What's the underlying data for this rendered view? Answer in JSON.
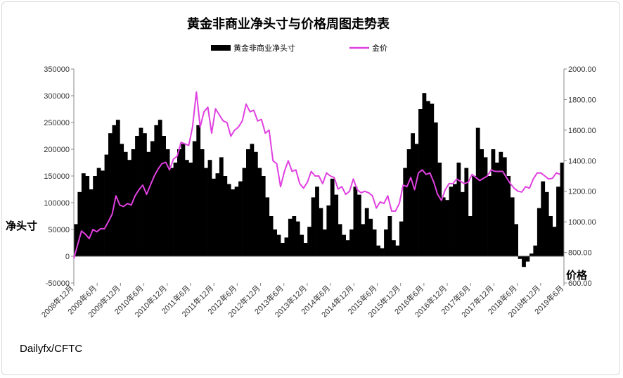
{
  "chart_data": {
    "type": "bar",
    "title": "黄金非商业净头寸与价格周图走势表",
    "source": "Dailyfx/CFTC",
    "left_axis_label": "净头寸",
    "right_axis_label": "价格",
    "left_ylim": [
      -50000,
      350000
    ],
    "right_ylim": [
      600,
      2000
    ],
    "left_ticks": [
      "350000",
      "300000",
      "250000",
      "200000",
      "150000",
      "100000",
      "50000",
      "0",
      "-50000"
    ],
    "right_ticks": [
      "2000.00",
      "1800.00",
      "1600.00",
      "1400.00",
      "1200.00",
      "1000.00",
      "800.00",
      "600.00"
    ],
    "x_range": [
      "2008-12",
      "2019-08"
    ],
    "x_labels": [
      "2008年12月",
      "2009年6月",
      "2009年12月",
      "2010年6月",
      "2010年12月",
      "2011年6月",
      "2011年12月",
      "2012年6月",
      "2012年12月",
      "2013年6月",
      "2013年12月",
      "2014年6月",
      "2014年12月",
      "2015年6月",
      "2015年12月",
      "2016年6月",
      "2016年12月",
      "2017年6月",
      "2017年12月",
      "2018年6月",
      "2018年12月",
      "2019年6月"
    ],
    "legend": {
      "placement": "top-center",
      "position_series": "黄金非商业净头寸",
      "price_series": "金价"
    },
    "colors": {
      "position": "#000000",
      "price": "#e040e0"
    },
    "series": [
      {
        "name": "黄金非商业净头寸",
        "kind": "bar",
        "axis": "left",
        "points": [
          [
            "2008-12",
            60000
          ],
          [
            "2009-01",
            120000
          ],
          [
            "2009-02",
            155000
          ],
          [
            "2009-03",
            150000
          ],
          [
            "2009-04",
            125000
          ],
          [
            "2009-05",
            150000
          ],
          [
            "2009-06",
            165000
          ],
          [
            "2009-07",
            160000
          ],
          [
            "2009-08",
            190000
          ],
          [
            "2009-09",
            230000
          ],
          [
            "2009-10",
            245000
          ],
          [
            "2009-11",
            255000
          ],
          [
            "2009-12",
            210000
          ],
          [
            "2010-01",
            195000
          ],
          [
            "2010-02",
            180000
          ],
          [
            "2010-03",
            200000
          ],
          [
            "2010-04",
            225000
          ],
          [
            "2010-05",
            240000
          ],
          [
            "2010-06",
            230000
          ],
          [
            "2010-07",
            195000
          ],
          [
            "2010-08",
            215000
          ],
          [
            "2010-09",
            245000
          ],
          [
            "2010-10",
            255000
          ],
          [
            "2010-11",
            225000
          ],
          [
            "2010-12",
            200000
          ],
          [
            "2011-01",
            165000
          ],
          [
            "2011-02",
            175000
          ],
          [
            "2011-03",
            200000
          ],
          [
            "2011-04",
            210000
          ],
          [
            "2011-05",
            180000
          ],
          [
            "2011-06",
            175000
          ],
          [
            "2011-07",
            215000
          ],
          [
            "2011-08",
            245000
          ],
          [
            "2011-09",
            200000
          ],
          [
            "2011-10",
            165000
          ],
          [
            "2011-11",
            180000
          ],
          [
            "2011-12",
            145000
          ],
          [
            "2012-01",
            155000
          ],
          [
            "2012-02",
            185000
          ],
          [
            "2012-03",
            150000
          ],
          [
            "2012-04",
            135000
          ],
          [
            "2012-05",
            125000
          ],
          [
            "2012-06",
            130000
          ],
          [
            "2012-07",
            140000
          ],
          [
            "2012-08",
            165000
          ],
          [
            "2012-09",
            200000
          ],
          [
            "2012-10",
            210000
          ],
          [
            "2012-11",
            195000
          ],
          [
            "2012-12",
            165000
          ],
          [
            "2013-01",
            150000
          ],
          [
            "2013-02",
            110000
          ],
          [
            "2013-03",
            75000
          ],
          [
            "2013-04",
            50000
          ],
          [
            "2013-05",
            40000
          ],
          [
            "2013-06",
            25000
          ],
          [
            "2013-07",
            35000
          ],
          [
            "2013-08",
            70000
          ],
          [
            "2013-09",
            75000
          ],
          [
            "2013-10",
            65000
          ],
          [
            "2013-11",
            40000
          ],
          [
            "2013-12",
            25000
          ],
          [
            "2014-01",
            55000
          ],
          [
            "2014-02",
            110000
          ],
          [
            "2014-03",
            130000
          ],
          [
            "2014-04",
            90000
          ],
          [
            "2014-05",
            50000
          ],
          [
            "2014-06",
            95000
          ],
          [
            "2014-07",
            145000
          ],
          [
            "2014-08",
            115000
          ],
          [
            "2014-09",
            60000
          ],
          [
            "2014-10",
            40000
          ],
          [
            "2014-11",
            30000
          ],
          [
            "2014-12",
            50000
          ],
          [
            "2015-01",
            130000
          ],
          [
            "2015-02",
            115000
          ],
          [
            "2015-03",
            60000
          ],
          [
            "2015-04",
            90000
          ],
          [
            "2015-05",
            70000
          ],
          [
            "2015-06",
            50000
          ],
          [
            "2015-07",
            20000
          ],
          [
            "2015-08",
            15000
          ],
          [
            "2015-09",
            50000
          ],
          [
            "2015-10",
            75000
          ],
          [
            "2015-11",
            30000
          ],
          [
            "2015-12",
            20000
          ],
          [
            "2016-01",
            65000
          ],
          [
            "2016-02",
            165000
          ],
          [
            "2016-03",
            200000
          ],
          [
            "2016-04",
            230000
          ],
          [
            "2016-05",
            210000
          ],
          [
            "2016-06",
            275000
          ],
          [
            "2016-07",
            305000
          ],
          [
            "2016-08",
            290000
          ],
          [
            "2016-09",
            285000
          ],
          [
            "2016-10",
            250000
          ],
          [
            "2016-11",
            175000
          ],
          [
            "2016-12",
            110000
          ],
          [
            "2017-01",
            105000
          ],
          [
            "2017-02",
            130000
          ],
          [
            "2017-03",
            135000
          ],
          [
            "2017-04",
            175000
          ],
          [
            "2017-05",
            120000
          ],
          [
            "2017-06",
            165000
          ],
          [
            "2017-07",
            75000
          ],
          [
            "2017-08",
            150000
          ],
          [
            "2017-09",
            240000
          ],
          [
            "2017-10",
            200000
          ],
          [
            "2017-11",
            185000
          ],
          [
            "2017-12",
            150000
          ],
          [
            "2018-01",
            200000
          ],
          [
            "2018-02",
            175000
          ],
          [
            "2018-03",
            195000
          ],
          [
            "2018-04",
            185000
          ],
          [
            "2018-05",
            150000
          ],
          [
            "2018-06",
            110000
          ],
          [
            "2018-07",
            60000
          ],
          [
            "2018-08",
            -5000
          ],
          [
            "2018-09",
            -20000
          ],
          [
            "2018-10",
            -10000
          ],
          [
            "2018-11",
            5000
          ],
          [
            "2018-12",
            20000
          ],
          [
            "2019-01",
            90000
          ],
          [
            "2019-02",
            140000
          ],
          [
            "2019-03",
            120000
          ],
          [
            "2019-04",
            75000
          ],
          [
            "2019-05",
            55000
          ],
          [
            "2019-06",
            130000
          ],
          [
            "2019-07",
            175000
          ]
        ]
      },
      {
        "name": "金价",
        "kind": "line",
        "axis": "right",
        "points": [
          [
            "2008-12",
            760
          ],
          [
            "2009-01",
            850
          ],
          [
            "2009-02",
            940
          ],
          [
            "2009-03",
            920
          ],
          [
            "2009-04",
            890
          ],
          [
            "2009-05",
            950
          ],
          [
            "2009-06",
            935
          ],
          [
            "2009-07",
            955
          ],
          [
            "2009-08",
            955
          ],
          [
            "2009-09",
            1000
          ],
          [
            "2009-10",
            1050
          ],
          [
            "2009-11",
            1170
          ],
          [
            "2009-12",
            1110
          ],
          [
            "2010-01",
            1100
          ],
          [
            "2010-02",
            1120
          ],
          [
            "2010-03",
            1110
          ],
          [
            "2010-04",
            1170
          ],
          [
            "2010-05",
            1210
          ],
          [
            "2010-06",
            1240
          ],
          [
            "2010-07",
            1180
          ],
          [
            "2010-08",
            1240
          ],
          [
            "2010-09",
            1300
          ],
          [
            "2010-10",
            1345
          ],
          [
            "2010-11",
            1380
          ],
          [
            "2010-12",
            1390
          ],
          [
            "2011-01",
            1340
          ],
          [
            "2011-02",
            1410
          ],
          [
            "2011-03",
            1430
          ],
          [
            "2011-04",
            1520
          ],
          [
            "2011-05",
            1510
          ],
          [
            "2011-06",
            1500
          ],
          [
            "2011-07",
            1620
          ],
          [
            "2011-08",
            1850
          ],
          [
            "2011-09",
            1620
          ],
          [
            "2011-10",
            1720
          ],
          [
            "2011-11",
            1750
          ],
          [
            "2011-12",
            1580
          ],
          [
            "2012-01",
            1740
          ],
          [
            "2012-02",
            1700
          ],
          [
            "2012-03",
            1660
          ],
          [
            "2012-04",
            1650
          ],
          [
            "2012-05",
            1560
          ],
          [
            "2012-06",
            1600
          ],
          [
            "2012-07",
            1620
          ],
          [
            "2012-08",
            1660
          ],
          [
            "2012-09",
            1770
          ],
          [
            "2012-10",
            1720
          ],
          [
            "2012-11",
            1730
          ],
          [
            "2012-12",
            1660
          ],
          [
            "2013-01",
            1670
          ],
          [
            "2013-02",
            1580
          ],
          [
            "2013-03",
            1600
          ],
          [
            "2013-04",
            1400
          ],
          [
            "2013-05",
            1380
          ],
          [
            "2013-06",
            1230
          ],
          [
            "2013-07",
            1330
          ],
          [
            "2013-08",
            1400
          ],
          [
            "2013-09",
            1330
          ],
          [
            "2013-10",
            1340
          ],
          [
            "2013-11",
            1250
          ],
          [
            "2013-12",
            1220
          ],
          [
            "2014-01",
            1260
          ],
          [
            "2014-02",
            1330
          ],
          [
            "2014-03",
            1300
          ],
          [
            "2014-04",
            1300
          ],
          [
            "2014-05",
            1250
          ],
          [
            "2014-06",
            1320
          ],
          [
            "2014-07",
            1300
          ],
          [
            "2014-08",
            1290
          ],
          [
            "2014-09",
            1215
          ],
          [
            "2014-10",
            1230
          ],
          [
            "2014-11",
            1180
          ],
          [
            "2014-12",
            1200
          ],
          [
            "2015-01",
            1280
          ],
          [
            "2015-02",
            1210
          ],
          [
            "2015-03",
            1190
          ],
          [
            "2015-04",
            1200
          ],
          [
            "2015-05",
            1190
          ],
          [
            "2015-06",
            1170
          ],
          [
            "2015-07",
            1090
          ],
          [
            "2015-08",
            1130
          ],
          [
            "2015-09",
            1120
          ],
          [
            "2015-10",
            1170
          ],
          [
            "2015-11",
            1070
          ],
          [
            "2015-12",
            1070
          ],
          [
            "2016-01",
            1120
          ],
          [
            "2016-02",
            1240
          ],
          [
            "2016-03",
            1230
          ],
          [
            "2016-04",
            1290
          ],
          [
            "2016-05",
            1210
          ],
          [
            "2016-06",
            1320
          ],
          [
            "2016-07",
            1340
          ],
          [
            "2016-08",
            1310
          ],
          [
            "2016-09",
            1320
          ],
          [
            "2016-10",
            1260
          ],
          [
            "2016-11",
            1180
          ],
          [
            "2016-12",
            1140
          ],
          [
            "2017-01",
            1210
          ],
          [
            "2017-02",
            1250
          ],
          [
            "2017-03",
            1250
          ],
          [
            "2017-04",
            1280
          ],
          [
            "2017-05",
            1265
          ],
          [
            "2017-06",
            1250
          ],
          [
            "2017-07",
            1260
          ],
          [
            "2017-08",
            1310
          ],
          [
            "2017-09",
            1290
          ],
          [
            "2017-10",
            1270
          ],
          [
            "2017-11",
            1285
          ],
          [
            "2017-12",
            1300
          ],
          [
            "2018-01",
            1340
          ],
          [
            "2018-02",
            1330
          ],
          [
            "2018-03",
            1330
          ],
          [
            "2018-04",
            1330
          ],
          [
            "2018-05",
            1290
          ],
          [
            "2018-06",
            1250
          ],
          [
            "2018-07",
            1220
          ],
          [
            "2018-08",
            1200
          ],
          [
            "2018-09",
            1195
          ],
          [
            "2018-10",
            1230
          ],
          [
            "2018-11",
            1220
          ],
          [
            "2018-12",
            1280
          ],
          [
            "2019-01",
            1320
          ],
          [
            "2019-02",
            1320
          ],
          [
            "2019-03",
            1300
          ],
          [
            "2019-04",
            1280
          ],
          [
            "2019-05",
            1285
          ],
          [
            "2019-06",
            1320
          ],
          [
            "2019-07",
            1310
          ]
        ]
      }
    ]
  }
}
